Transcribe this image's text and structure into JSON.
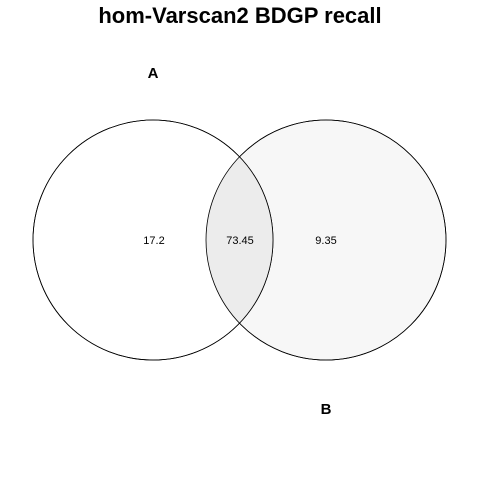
{
  "title": "hom-Varscan2 BDGP recall",
  "sets": [
    {
      "id": "A",
      "label": "A",
      "fill": "#ffffff"
    },
    {
      "id": "B",
      "label": "B",
      "fill": "#f7f7f7"
    }
  ],
  "intersection_fill": "#ececec",
  "regions": {
    "only_a": "17.2",
    "a_and_b": "73.45",
    "only_b": "9.35"
  }
}
